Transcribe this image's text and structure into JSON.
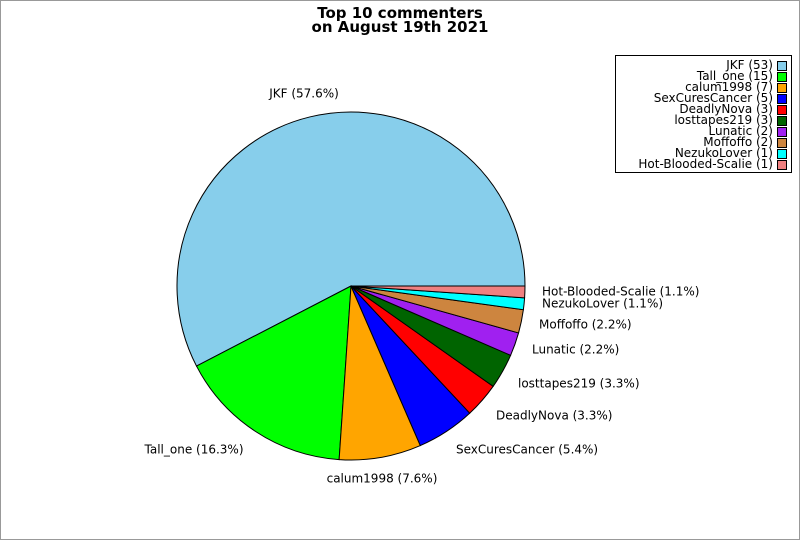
{
  "chart_data": {
    "type": "pie",
    "title_line1": "Top 10 commenters",
    "title_line2": "on August 19th 2021",
    "legend_position": "top-right",
    "slices": [
      {
        "label": "JKF",
        "value": 53,
        "pct": "57.6%",
        "color": "#87ceeb"
      },
      {
        "label": "Tall_one",
        "value": 15,
        "pct": "16.3%",
        "color": "#00ff00"
      },
      {
        "label": "calum1998",
        "value": 7,
        "pct": "7.6%",
        "color": "#ffa500"
      },
      {
        "label": "SexCuresCancer",
        "value": 5,
        "pct": "5.4%",
        "color": "#0000ff"
      },
      {
        "label": "DeadlyNova",
        "value": 3,
        "pct": "3.3%",
        "color": "#ff0000"
      },
      {
        "label": "losttapes219",
        "value": 3,
        "pct": "3.3%",
        "color": "#006400"
      },
      {
        "label": "Lunatic",
        "value": 2,
        "pct": "2.2%",
        "color": "#a020f0"
      },
      {
        "label": "Moffoffo",
        "value": 2,
        "pct": "2.2%",
        "color": "#cd853f"
      },
      {
        "label": "NezukoLover",
        "value": 1,
        "pct": "1.1%",
        "color": "#00ffff"
      },
      {
        "label": "Hot-Blooded-Scalie",
        "value": 1,
        "pct": "1.1%",
        "color": "#f08080"
      }
    ]
  }
}
